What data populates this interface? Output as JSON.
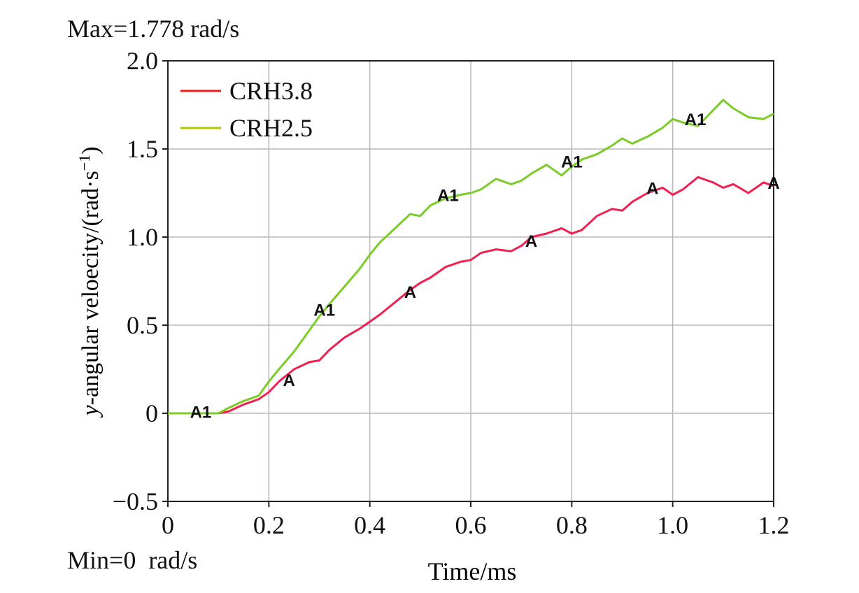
{
  "header": {
    "max_text": "Max=1.778 rad/s",
    "min_text": "Min=0  rad/s"
  },
  "chart_data": {
    "type": "line",
    "xlabel": "Time/ms",
    "ylabel_prefix": "y",
    "ylabel_rest": "-angular veloecity/(rad·s",
    "ylabel_exp": "−1",
    "ylabel_close": ")",
    "xlim": [
      0,
      1.2
    ],
    "ylim": [
      -0.5,
      2.0
    ],
    "xticks": [
      0,
      0.2,
      0.4,
      0.6,
      0.8,
      1.0,
      1.2
    ],
    "xtick_labels": [
      "0",
      "0.2",
      "0.4",
      "0.6",
      "0.8",
      "1.0",
      "1.2"
    ],
    "yticks": [
      -0.5,
      0,
      0.5,
      1.0,
      1.5,
      2.0
    ],
    "ytick_labels": [
      "−0.5",
      "0",
      "0.5",
      "1.0",
      "1.5",
      "2.0"
    ],
    "grid": true,
    "legend_position": "top-left",
    "series": [
      {
        "name": "CRH3.8",
        "color": "#f02050",
        "legend_color": "#ff1a1a",
        "marker_label": "A",
        "x": [
          0,
          0.05,
          0.1,
          0.12,
          0.15,
          0.18,
          0.2,
          0.22,
          0.25,
          0.28,
          0.3,
          0.32,
          0.35,
          0.38,
          0.4,
          0.42,
          0.45,
          0.48,
          0.5,
          0.52,
          0.55,
          0.58,
          0.6,
          0.62,
          0.65,
          0.68,
          0.7,
          0.72,
          0.75,
          0.78,
          0.8,
          0.82,
          0.85,
          0.88,
          0.9,
          0.92,
          0.95,
          0.98,
          1.0,
          1.02,
          1.05,
          1.08,
          1.1,
          1.12,
          1.15,
          1.18,
          1.2
        ],
        "y": [
          0,
          0,
          0,
          0.01,
          0.05,
          0.08,
          0.12,
          0.18,
          0.25,
          0.29,
          0.3,
          0.36,
          0.43,
          0.48,
          0.52,
          0.56,
          0.63,
          0.7,
          0.74,
          0.77,
          0.83,
          0.86,
          0.87,
          0.91,
          0.93,
          0.92,
          0.95,
          1.0,
          1.02,
          1.05,
          1.02,
          1.04,
          1.12,
          1.16,
          1.15,
          1.2,
          1.25,
          1.28,
          1.24,
          1.27,
          1.34,
          1.31,
          1.28,
          1.3,
          1.25,
          1.31,
          1.29
        ],
        "markers_x": [
          0.24,
          0.48,
          0.72,
          0.96,
          1.2
        ],
        "markers_y": [
          0.19,
          0.69,
          0.98,
          1.28,
          1.31
        ]
      },
      {
        "name": "CRH2.5",
        "color": "#7ccc28",
        "legend_color": "#b5c400",
        "marker_label": "A1",
        "x": [
          0,
          0.05,
          0.1,
          0.12,
          0.15,
          0.18,
          0.2,
          0.22,
          0.25,
          0.28,
          0.3,
          0.32,
          0.35,
          0.38,
          0.4,
          0.42,
          0.45,
          0.48,
          0.5,
          0.52,
          0.55,
          0.58,
          0.6,
          0.62,
          0.65,
          0.68,
          0.7,
          0.72,
          0.75,
          0.78,
          0.8,
          0.82,
          0.85,
          0.88,
          0.9,
          0.92,
          0.95,
          0.98,
          1.0,
          1.02,
          1.05,
          1.08,
          1.1,
          1.12,
          1.15,
          1.18,
          1.2
        ],
        "y": [
          0,
          0,
          0,
          0.03,
          0.07,
          0.1,
          0.18,
          0.25,
          0.35,
          0.47,
          0.55,
          0.62,
          0.72,
          0.82,
          0.9,
          0.97,
          1.05,
          1.13,
          1.12,
          1.18,
          1.22,
          1.24,
          1.25,
          1.27,
          1.33,
          1.3,
          1.32,
          1.36,
          1.41,
          1.35,
          1.4,
          1.44,
          1.47,
          1.52,
          1.56,
          1.53,
          1.57,
          1.62,
          1.67,
          1.65,
          1.63,
          1.72,
          1.778,
          1.73,
          1.68,
          1.67,
          1.7
        ],
        "markers_x": [
          0.065,
          0.31,
          0.555,
          0.8,
          1.045
        ],
        "markers_y": [
          0.01,
          0.59,
          1.24,
          1.43,
          1.67
        ]
      }
    ]
  }
}
